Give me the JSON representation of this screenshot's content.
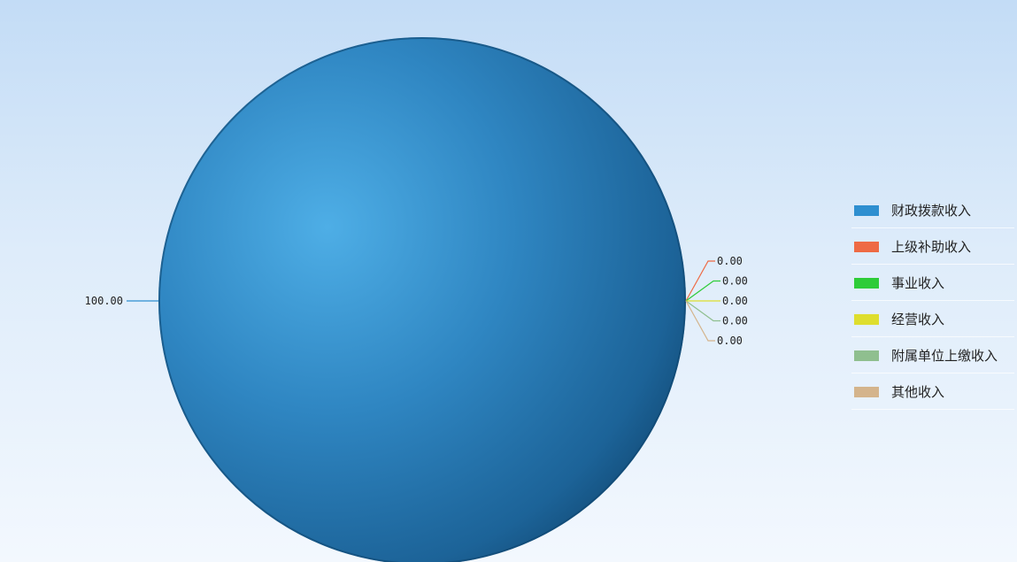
{
  "chart_data": {
    "type": "pie",
    "categories": [
      "财政拨款收入",
      "上级补助收入",
      "事业收入",
      "经营收入",
      "附属单位上缴收入",
      "其他收入"
    ],
    "values": [
      100.0,
      0.0,
      0.0,
      0.0,
      0.0,
      0.0
    ],
    "data_labels": [
      "100.00",
      "0.00",
      "0.00",
      "0.00",
      "0.00",
      "0.00"
    ],
    "colors": [
      "#2e8fd0",
      "#ee6a44",
      "#2ecc38",
      "#dede2e",
      "#8fbf8f",
      "#d4b48c"
    ],
    "legend_position": "right"
  }
}
